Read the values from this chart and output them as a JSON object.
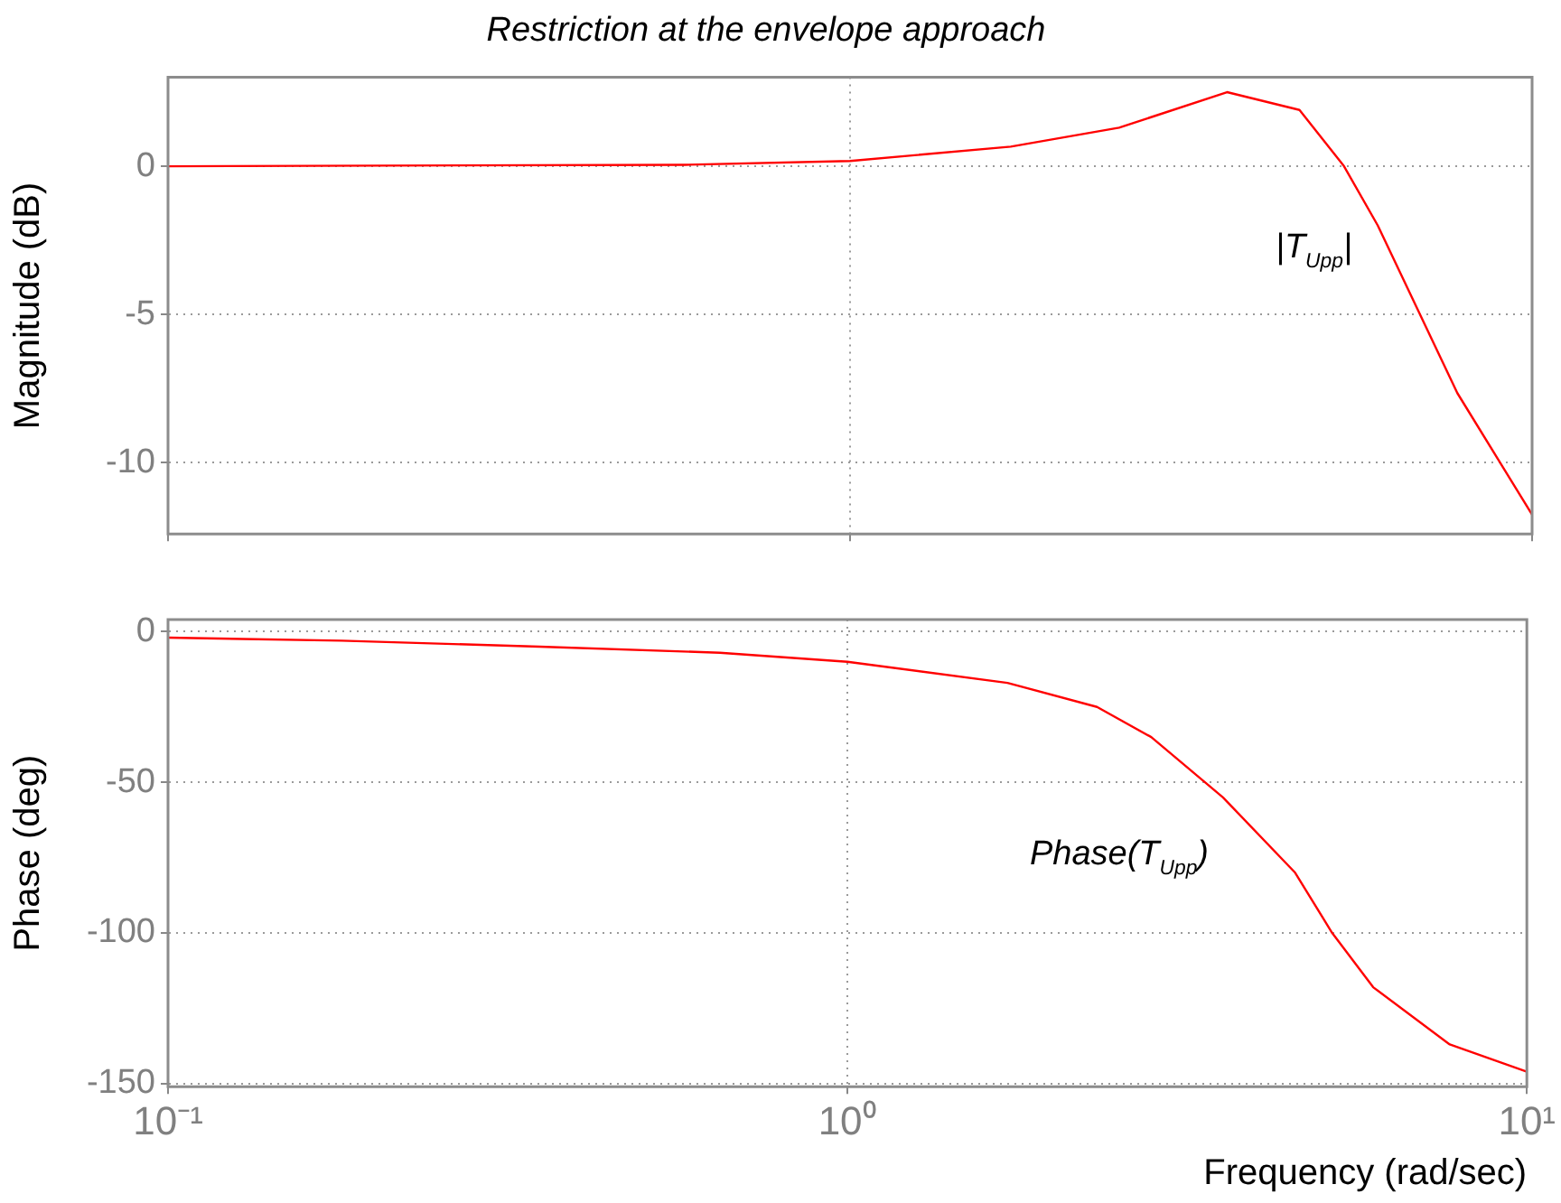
{
  "chart_data": [
    {
      "type": "line",
      "title": "Restriction at the envelope approach",
      "ylabel": "Magnitude (dB)",
      "color": "#ff0000",
      "x": [
        0.1,
        0.574,
        1,
        1.72,
        2.48,
        3.57,
        4.56,
        5.3,
        5.94,
        7.77,
        10
      ],
      "values": [
        0,
        0.05,
        0.18,
        0.66,
        1.3,
        2.5,
        1.9,
        0,
        -2,
        -7.65,
        -11.75
      ],
      "log": "x",
      "xlim": [
        0.1,
        10
      ],
      "ylim": [
        -12.4,
        3
      ],
      "xticks": [
        {
          "value": 0.1,
          "label": null
        },
        {
          "value": 1,
          "label": null
        },
        {
          "value": 10,
          "label": null
        }
      ],
      "yticks": [
        -10,
        -5,
        0
      ],
      "grid": true,
      "tick_labels": "y",
      "annotations": [
        "|T$_{Upp}$|"
      ]
    },
    {
      "type": "line",
      "xlabel": "Frequency (rad/sec)",
      "ylabel": "Phase (deg)",
      "color": "#ff0000",
      "x": [
        0.1,
        0.18,
        0.352,
        0.649,
        1,
        1.72,
        2.33,
        2.8,
        3.57,
        4.56,
        5.17,
        5.94,
        7.7,
        10
      ],
      "values": [
        -2,
        -3,
        -5,
        -7,
        -10,
        -17,
        -25,
        -35,
        -55,
        -80,
        -100,
        -118,
        -137,
        -146
      ],
      "log": "x",
      "xlim": [
        0.1,
        10
      ],
      "ylim": [
        -151,
        4
      ],
      "xticks": [
        {
          "value": 0.1,
          "label": "10⁻¹"
        },
        {
          "value": 1,
          "label": "10⁰"
        },
        {
          "value": 10,
          "label": "10¹"
        }
      ],
      "yticks": [
        -150,
        -100,
        -50,
        0
      ],
      "grid": true,
      "annotations": [
        "Phase(T$_{Upp}$)"
      ]
    }
  ]
}
